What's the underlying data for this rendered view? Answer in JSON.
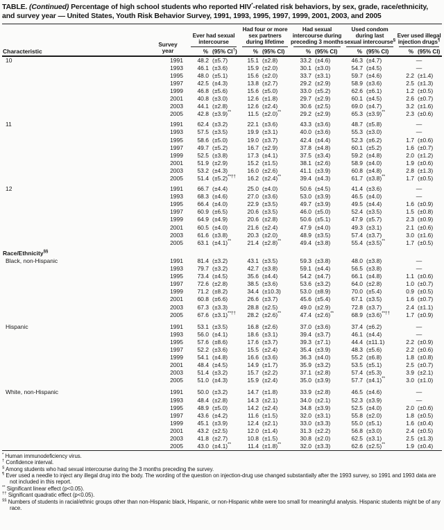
{
  "title": {
    "table_label": "TABLE.",
    "continued": "(Continued)",
    "body_pre": "Percentage of high school students who reported HIV",
    "hiv_sup": "*",
    "body_post": "-related risk behaviors, by sex, grade, race/ethnicity, and survey year — United States, Youth Risk Behavior Survey, 1991, 1993, 1995, 1997, 1999, 2001, 2003, and 2005"
  },
  "table": {
    "col_characteristic": "Characteristic",
    "col_survey_year": "Survey\nyear",
    "no_data": "—",
    "groups": [
      {
        "label": "Ever had sexual\nintercourse",
        "pct": "%",
        "ci": "(95% CI†)"
      },
      {
        "label": "Had four or more\nsex partners\nduring lifetime",
        "pct": "%",
        "ci": "(95% CI)"
      },
      {
        "label": "Had sexual\nintercourse during\npreceding 3 months",
        "pct": "%",
        "ci": "(95% CI)"
      },
      {
        "label": "Used condom\nduring last\nsexual intercourse§",
        "pct": "%",
        "ci": "(95% CI)"
      },
      {
        "label": "Ever used illegal\ninjection drugs¶",
        "pct": "%",
        "ci": "(95% CI)"
      }
    ],
    "sections": [
      {
        "label": "10",
        "indent": false,
        "rows": [
          {
            "year": "1991",
            "cells": [
              "48.2",
              "(±5.7)",
              "15.1",
              "(±2.8)",
              "33.2",
              "(±4.6)",
              "46.3",
              "(±4.7)",
              "—",
              ""
            ]
          },
          {
            "year": "1993",
            "cells": [
              "46.1",
              "(±3.6)",
              "15.9",
              "(±2.0)",
              "30.1",
              "(±3.0)",
              "54.7",
              "(±4.5)",
              "—",
              ""
            ]
          },
          {
            "year": "1995",
            "cells": [
              "48.0",
              "(±5.1)",
              "15.6",
              "(±2.0)",
              "33.7",
              "(±3.1)",
              "59.7",
              "(±4.6)",
              "2.2",
              "(±1.4)"
            ]
          },
          {
            "year": "1997",
            "cells": [
              "42.5",
              "(±4.3)",
              "13.8",
              "(±2.7)",
              "29.2",
              "(±2.9)",
              "58.9",
              "(±3.6)",
              "2.5",
              "(±1.3)"
            ]
          },
          {
            "year": "1999",
            "cells": [
              "46.8",
              "(±5.6)",
              "15.6",
              "(±5.0)",
              "33.0",
              "(±5.2)",
              "62.6",
              "(±6.1)",
              "1.2",
              "(±0.5)"
            ]
          },
          {
            "year": "2001",
            "cells": [
              "40.8",
              "(±3.0)",
              "12.6",
              "(±1.8)",
              "29.7",
              "(±2.9)",
              "60.1",
              "(±4.5)",
              "2.6",
              "(±0.7)"
            ]
          },
          {
            "year": "2003",
            "cells": [
              "44.1",
              "(±2.8)",
              "12.6",
              "(±2.4)",
              "30.6",
              "(±2.5)",
              "69.0",
              "(±4.7)",
              "3.2",
              "(±1.6)"
            ]
          },
          {
            "year": "2005",
            "cells": [
              "42.8",
              "(±3.9)**",
              "11.5",
              "(±2.0)**",
              "29.2",
              "(±2.9)",
              "65.3",
              "(±3.9)**",
              "2.3",
              "(±0.6)"
            ]
          }
        ]
      },
      {
        "label": "11",
        "indent": false,
        "rows": [
          {
            "year": "1991",
            "cells": [
              "62.4",
              "(±3.2)",
              "22.1",
              "(±3.6)",
              "43.3",
              "(±3.6)",
              "48.7",
              "(±5.8)",
              "—",
              ""
            ]
          },
          {
            "year": "1993",
            "cells": [
              "57.5",
              "(±3.5)",
              "19.9",
              "(±3.1)",
              "40.0",
              "(±3.6)",
              "55.3",
              "(±3.0)",
              "—",
              ""
            ]
          },
          {
            "year": "1995",
            "cells": [
              "58.6",
              "(±5.0)",
              "19.0",
              "(±3.7)",
              "42.4",
              "(±4.4)",
              "52.3",
              "(±6.2)",
              "1.7",
              "(±0.6)"
            ]
          },
          {
            "year": "1997",
            "cells": [
              "49.7",
              "(±5.2)",
              "16.7",
              "(±2.9)",
              "37.8",
              "(±4.8)",
              "60.1",
              "(±5.2)",
              "1.6",
              "(±0.7)"
            ]
          },
          {
            "year": "1999",
            "cells": [
              "52.5",
              "(±3.8)",
              "17.3",
              "(±4.1)",
              "37.5",
              "(±3.4)",
              "59.2",
              "(±4.8)",
              "2.0",
              "(±1.2)"
            ]
          },
          {
            "year": "2001",
            "cells": [
              "51.9",
              "(±2.9)",
              "15.2",
              "(±1.5)",
              "38.1",
              "(±2.6)",
              "58.9",
              "(±4.0)",
              "1.9",
              "(±0.6)"
            ]
          },
          {
            "year": "2003",
            "cells": [
              "53.2",
              "(±4.3)",
              "16.0",
              "(±2.6)",
              "41.1",
              "(±3.9)",
              "60.8",
              "(±4.8)",
              "2.8",
              "(±1.3)"
            ]
          },
          {
            "year": "2005",
            "cells": [
              "51.4",
              "(±5.2)**††",
              "16.2",
              "(±2.4)**",
              "39.4",
              "(±4.3)",
              "61.7",
              "(±3.8)**",
              "1.7",
              "(±0.5)"
            ]
          }
        ]
      },
      {
        "label": "12",
        "indent": false,
        "rows": [
          {
            "year": "1991",
            "cells": [
              "66.7",
              "(±4.4)",
              "25.0",
              "(±4.0)",
              "50.6",
              "(±4.5)",
              "41.4",
              "(±3.6)",
              "—",
              ""
            ]
          },
          {
            "year": "1993",
            "cells": [
              "68.3",
              "(±4.6)",
              "27.0",
              "(±3.6)",
              "53.0",
              "(±3.9)",
              "46.5",
              "(±4.0)",
              "—",
              ""
            ]
          },
          {
            "year": "1995",
            "cells": [
              "66.4",
              "(±4.0)",
              "22.9",
              "(±3.5)",
              "49.7",
              "(±3.9)",
              "49.5",
              "(±4.4)",
              "1.6",
              "(±0.9)"
            ]
          },
          {
            "year": "1997",
            "cells": [
              "60.9",
              "(±6.5)",
              "20.6",
              "(±3.5)",
              "46.0",
              "(±5.0)",
              "52.4",
              "(±3.5)",
              "1.5",
              "(±0.8)"
            ]
          },
          {
            "year": "1999",
            "cells": [
              "64.9",
              "(±4.9)",
              "20.6",
              "(±2.8)",
              "50.6",
              "(±5.1)",
              "47.9",
              "(±5.7)",
              "2.3",
              "(±0.9)"
            ]
          },
          {
            "year": "2001",
            "cells": [
              "60.5",
              "(±4.0)",
              "21.6",
              "(±2.4)",
              "47.9",
              "(±4.0)",
              "49.3",
              "(±3.1)",
              "2.1",
              "(±0.6)"
            ]
          },
          {
            "year": "2003",
            "cells": [
              "61.6",
              "(±3.8)",
              "20.3",
              "(±2.0)",
              "48.9",
              "(±3.5)",
              "57.4",
              "(±3.7)",
              "3.0",
              "(±1.6)"
            ]
          },
          {
            "year": "2005",
            "cells": [
              "63.1",
              "(±4.1)**",
              "21.4",
              "(±2.8)**",
              "49.4",
              "(±3.8)",
              "55.4",
              "(±3.5)**",
              "1.7",
              "(±0.5)"
            ]
          }
        ]
      },
      {
        "label": "Race/Ethnicity§§",
        "indent": false,
        "rows": []
      },
      {
        "label": "Black, non-Hispanic",
        "indent": true,
        "rows": [
          {
            "year": "1991",
            "cells": [
              "81.4",
              "(±3.2)",
              "43.1",
              "(±3.5)",
              "59.3",
              "(±3.8)",
              "48.0",
              "(±3.8)",
              "—",
              ""
            ]
          },
          {
            "year": "1993",
            "cells": [
              "79.7",
              "(±3.2)",
              "42.7",
              "(±3.8)",
              "59.1",
              "(±4.4)",
              "56.5",
              "(±3.8)",
              "—",
              ""
            ]
          },
          {
            "year": "1995",
            "cells": [
              "73.4",
              "(±4.5)",
              "35.6",
              "(±4.4)",
              "54.2",
              "(±4.7)",
              "66.1",
              "(±4.8)",
              "1.1",
              "(±0.6)"
            ]
          },
          {
            "year": "1997",
            "cells": [
              "72.6",
              "(±2.8)",
              "38.5",
              "(±3.6)",
              "53.6",
              "(±3.2)",
              "64.0",
              "(±2.8)",
              "1.0",
              "(±0.7)"
            ]
          },
          {
            "year": "1999",
            "cells": [
              "71.2",
              "(±8.2)",
              "34.4",
              "(±10.3)",
              "53.0",
              "(±8.9)",
              "70.0",
              "(±5.4)",
              "0.9",
              "(±0.5)"
            ]
          },
          {
            "year": "2001",
            "cells": [
              "60.8",
              "(±6.6)",
              "26.6",
              "(±3.7)",
              "45.6",
              "(±5.4)",
              "67.1",
              "(±3.5)",
              "1.6",
              "(±0.7)"
            ]
          },
          {
            "year": "2003",
            "cells": [
              "67.3",
              "(±3.3)",
              "28.8",
              "(±2.5)",
              "49.0",
              "(±2.9)",
              "72.8",
              "(±3.7)",
              "2.4",
              "(±1.1)"
            ]
          },
          {
            "year": "2005",
            "cells": [
              "67.6",
              "(±3.1)**††",
              "28.2",
              "(±2.6)**",
              "47.4",
              "(±2.6)**",
              "68.9",
              "(±3.6)**††",
              "1.7",
              "(±0.9)"
            ]
          }
        ]
      },
      {
        "label": "Hispanic",
        "indent": true,
        "rows": [
          {
            "year": "1991",
            "cells": [
              "53.1",
              "(±3.5)",
              "16.8",
              "(±2.6)",
              "37.0",
              "(±3.6)",
              "37.4",
              "(±6.2)",
              "—",
              ""
            ]
          },
          {
            "year": "1993",
            "cells": [
              "56.0",
              "(±4.1)",
              "18.6",
              "(±3.1)",
              "39.4",
              "(±3.7)",
              "46.1",
              "(±4.4)",
              "—",
              ""
            ]
          },
          {
            "year": "1995",
            "cells": [
              "57.6",
              "(±8.6)",
              "17.6",
              "(±3.7)",
              "39.3",
              "(±7.1)",
              "44.4",
              "(±11.1)",
              "2.2",
              "(±0.9)"
            ]
          },
          {
            "year": "1997",
            "cells": [
              "52.2",
              "(±3.6)",
              "15.5",
              "(±2.4)",
              "35.4",
              "(±3.9)",
              "48.3",
              "(±5.6)",
              "2.2",
              "(±0.6)"
            ]
          },
          {
            "year": "1999",
            "cells": [
              "54.1",
              "(±4.8)",
              "16.6",
              "(±3.6)",
              "36.3",
              "(±4.0)",
              "55.2",
              "(±6.8)",
              "1.8",
              "(±0.8)"
            ]
          },
          {
            "year": "2001",
            "cells": [
              "48.4",
              "(±4.5)",
              "14.9",
              "(±1.7)",
              "35.9",
              "(±3.2)",
              "53.5",
              "(±5.1)",
              "2.5",
              "(±0.7)"
            ]
          },
          {
            "year": "2003",
            "cells": [
              "51.4",
              "(±3.2)",
              "15.7",
              "(±2.2)",
              "37.1",
              "(±2.8)",
              "57.4",
              "(±5.3)",
              "3.9",
              "(±2.1)"
            ]
          },
          {
            "year": "2005",
            "cells": [
              "51.0",
              "(±4.3)",
              "15.9",
              "(±2.4)",
              "35.0",
              "(±3.9)",
              "57.7",
              "(±4.1)**",
              "3.0",
              "(±1.0)"
            ]
          }
        ]
      },
      {
        "label": "White, non-Hispanic",
        "indent": true,
        "rows": [
          {
            "year": "1991",
            "cells": [
              "50.0",
              "(±3.2)",
              "14.7",
              "(±1.8)",
              "33.9",
              "(±2.8)",
              "46.5",
              "(±4.6)",
              "—",
              ""
            ]
          },
          {
            "year": "1993",
            "cells": [
              "48.4",
              "(±2.8)",
              "14.3",
              "(±2.1)",
              "34.0",
              "(±2.1)",
              "52.3",
              "(±3.9)",
              "—",
              ""
            ]
          },
          {
            "year": "1995",
            "cells": [
              "48.9",
              "(±5.0)",
              "14.2",
              "(±2.4)",
              "34.8",
              "(±3.9)",
              "52.5",
              "(±4.0)",
              "2.0",
              "(±0.6)"
            ]
          },
          {
            "year": "1997",
            "cells": [
              "43.6",
              "(±4.2)",
              "11.6",
              "(±1.5)",
              "32.0",
              "(±3.1)",
              "55.8",
              "(±2.0)",
              "1.8",
              "(±0.5)"
            ]
          },
          {
            "year": "1999",
            "cells": [
              "45.1",
              "(±3.9)",
              "12.4",
              "(±2.1)",
              "33.0",
              "(±3.3)",
              "55.0",
              "(±5.1)",
              "1.6",
              "(±0.4)"
            ]
          },
          {
            "year": "2001",
            "cells": [
              "43.2",
              "(±2.5)",
              "12.0",
              "(±1.4)",
              "31.3",
              "(±2.2)",
              "56.8",
              "(±3.0)",
              "2.4",
              "(±0.5)"
            ]
          },
          {
            "year": "2003",
            "cells": [
              "41.8",
              "(±2.7)",
              "10.8",
              "(±1.5)",
              "30.8",
              "(±2.0)",
              "62.5",
              "(±3.1)",
              "2.5",
              "(±1.3)"
            ]
          },
          {
            "year": "2005",
            "cells": [
              "43.0",
              "(±4.1)**",
              "11.4",
              "(±1.8)**",
              "32.0",
              "(±3.3)",
              "62.6",
              "(±2.5)**",
              "1.9",
              "(±0.4)"
            ]
          }
        ]
      }
    ]
  },
  "footnotes": [
    {
      "marker": "*",
      "text": "Human immunodeficiency virus."
    },
    {
      "marker": "†",
      "text": "Confidence interval."
    },
    {
      "marker": "§",
      "text": "Among students who had sexual intercourse during the 3 months preceding the survey."
    },
    {
      "marker": "¶",
      "text": "Ever used a needle to inject any illegal drug into the body. The wording of the question on injection-drug use changed substantially after the 1993 survey, so 1991 and 1993 data are not included in this report."
    },
    {
      "marker": "**",
      "text": "Significant linear effect (p<0.05)."
    },
    {
      "marker": "††",
      "text": "Significant quadratic effect (p<0.05)."
    },
    {
      "marker": "§§",
      "text": "Numbers of students in racial/ethnic groups other than non-Hispanic black, Hispanic, or non-Hispanic white were too small for meaningful analysis. Hispanic students might be of any race."
    }
  ]
}
